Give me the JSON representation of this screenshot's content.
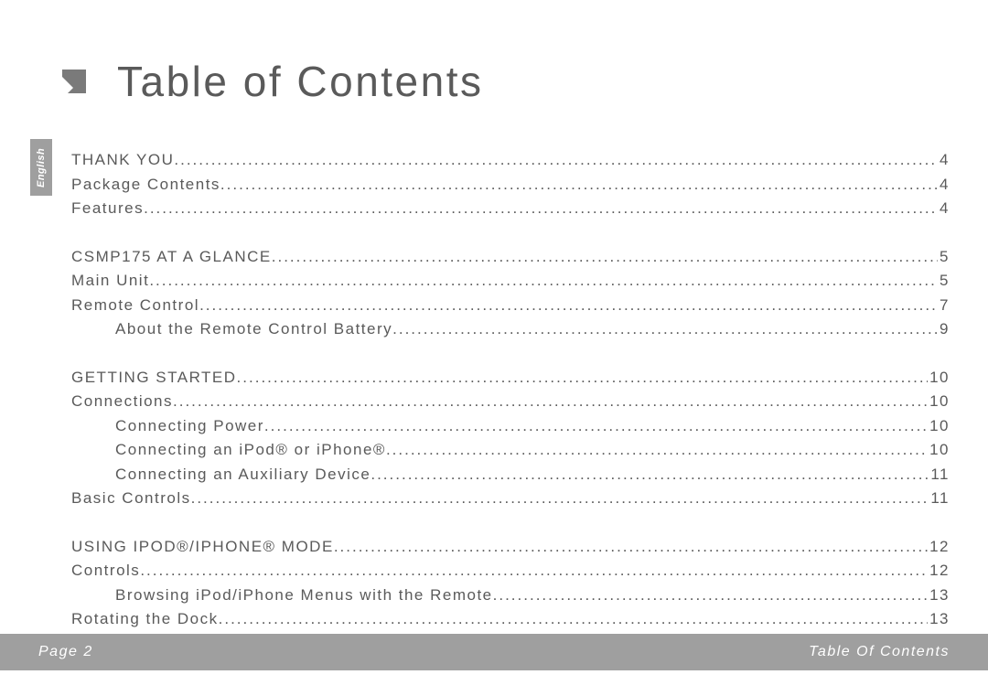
{
  "language_tab": "English",
  "title": "Table of Contents",
  "arrow": {
    "fill": "#7a7a7a",
    "size": 38
  },
  "colors": {
    "text": "#5a5a5a",
    "tab_bg": "#9f9f9f",
    "tab_text": "#ffffff",
    "footer_bg": "#9f9f9f",
    "footer_text": "#ffffff",
    "page_bg": "#ffffff"
  },
  "typography": {
    "title_fontsize": 46,
    "body_fontsize": 17,
    "footer_fontsize": 16,
    "tab_fontsize": 11,
    "letter_spacing_body": 1.5,
    "letter_spacing_title": 2.5,
    "line_height": 26.5
  },
  "toc": [
    {
      "label": "THANK YOU",
      "page": "4",
      "indent": 0
    },
    {
      "label": "Package Contents",
      "page": "4",
      "indent": 0
    },
    {
      "label": "Features",
      "page": "4",
      "indent": 0
    },
    {
      "gap": true
    },
    {
      "label": "CSMP175 AT A GLANCE",
      "page": "5",
      "indent": 0
    },
    {
      "label": "Main Unit",
      "page": "5",
      "indent": 0
    },
    {
      "label": "Remote Control",
      "page": "7",
      "indent": 0
    },
    {
      "label": "About the Remote Control Battery",
      "page": "9",
      "indent": 1
    },
    {
      "gap": true
    },
    {
      "label": "GETTING STARTED",
      "page": "10",
      "indent": 0
    },
    {
      "label": "Connections",
      "page": "10",
      "indent": 0
    },
    {
      "label": "Connecting Power",
      "page": "10",
      "indent": 1
    },
    {
      "label": "Connecting an iPod® or iPhone® ",
      "page": "10",
      "indent": 1
    },
    {
      "label": "Connecting an Auxiliary Device",
      "page": "11",
      "indent": 1
    },
    {
      "label": "Basic Controls",
      "page": "11",
      "indent": 0
    },
    {
      "gap": true
    },
    {
      "label": "USING IPOD®/IPHONE® MODE",
      "page": "12",
      "indent": 0
    },
    {
      "label": "Controls",
      "page": "12",
      "indent": 0
    },
    {
      "label": "Browsing iPod/iPhone Menus with the Remote",
      "page": "13",
      "indent": 1
    },
    {
      "label": "Rotating the Dock",
      "page": "13",
      "indent": 0
    }
  ],
  "footer": {
    "left": "Page 2",
    "right": "Table Of Contents"
  }
}
